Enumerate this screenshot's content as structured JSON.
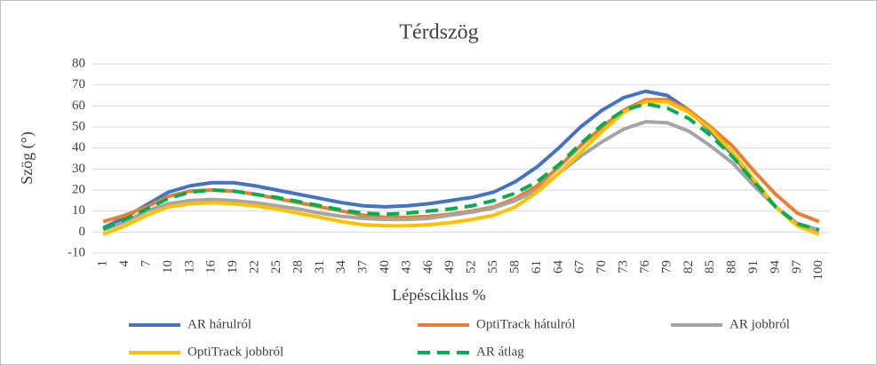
{
  "chart_data": {
    "type": "line",
    "title": "Térdszög",
    "y_label": "Szög (°)",
    "x_label": "Lépésciklus %",
    "categories": [
      1,
      4,
      7,
      10,
      13,
      16,
      19,
      22,
      25,
      28,
      31,
      34,
      37,
      40,
      43,
      46,
      49,
      52,
      55,
      58,
      61,
      64,
      67,
      70,
      73,
      76,
      79,
      82,
      85,
      88,
      91,
      94,
      97,
      100
    ],
    "ylim": [
      -10,
      80
    ],
    "yticks": [
      -10,
      0,
      10,
      20,
      30,
      40,
      50,
      60,
      70,
      80
    ],
    "grid": true,
    "series": [
      {
        "name": "AR hárulról",
        "color": "#4472c4",
        "values": [
          2,
          7,
          13,
          19,
          22,
          23.5,
          23.5,
          22,
          20,
          18,
          16,
          14,
          12.5,
          12,
          12.5,
          13.5,
          15,
          16.5,
          19,
          24,
          31,
          40,
          50,
          58,
          64,
          67,
          65,
          58,
          48,
          37,
          24,
          12,
          4,
          1
        ]
      },
      {
        "name": "OptiTrack hátulról",
        "color": "#ed7d31",
        "values": [
          5,
          8,
          12,
          17,
          19.5,
          20,
          19.5,
          18,
          16,
          14,
          12,
          10,
          8,
          7,
          7,
          7.5,
          8.5,
          10,
          12,
          16,
          22,
          31,
          41,
          50,
          58,
          63,
          63,
          58,
          50,
          41,
          29,
          18,
          9,
          5
        ]
      },
      {
        "name": "AR jobbról",
        "color": "#a5a5a5",
        "values": [
          1,
          5,
          10,
          13.5,
          15,
          15.5,
          15,
          14,
          12.5,
          11,
          9,
          7.5,
          6.5,
          6,
          6,
          6.5,
          8,
          9.5,
          11.5,
          15,
          20,
          28,
          36,
          43,
          49,
          52.5,
          52,
          48,
          41,
          33,
          22,
          12,
          4,
          1
        ]
      },
      {
        "name": "OptiTrack jobbról",
        "color": "#ffc000",
        "values": [
          -1,
          3,
          8,
          12,
          13.5,
          14,
          13.5,
          12.5,
          11,
          9,
          7,
          5,
          3.5,
          3,
          3,
          3.5,
          4.5,
          6,
          8,
          12,
          19,
          28,
          38,
          48,
          57,
          62,
          62,
          57,
          49,
          38,
          25,
          12,
          3,
          -1
        ]
      },
      {
        "name": "AR átlag",
        "color": "#00b050",
        "dashed": true,
        "values": [
          1.5,
          6,
          11,
          16,
          19,
          20,
          19.5,
          18,
          16.5,
          14.5,
          12.5,
          10.5,
          9,
          8.5,
          9,
          10,
          11,
          12.5,
          15,
          18.5,
          24,
          32,
          42,
          51,
          58,
          61,
          59,
          54,
          46,
          36,
          24,
          12,
          4,
          1
        ]
      }
    ]
  }
}
